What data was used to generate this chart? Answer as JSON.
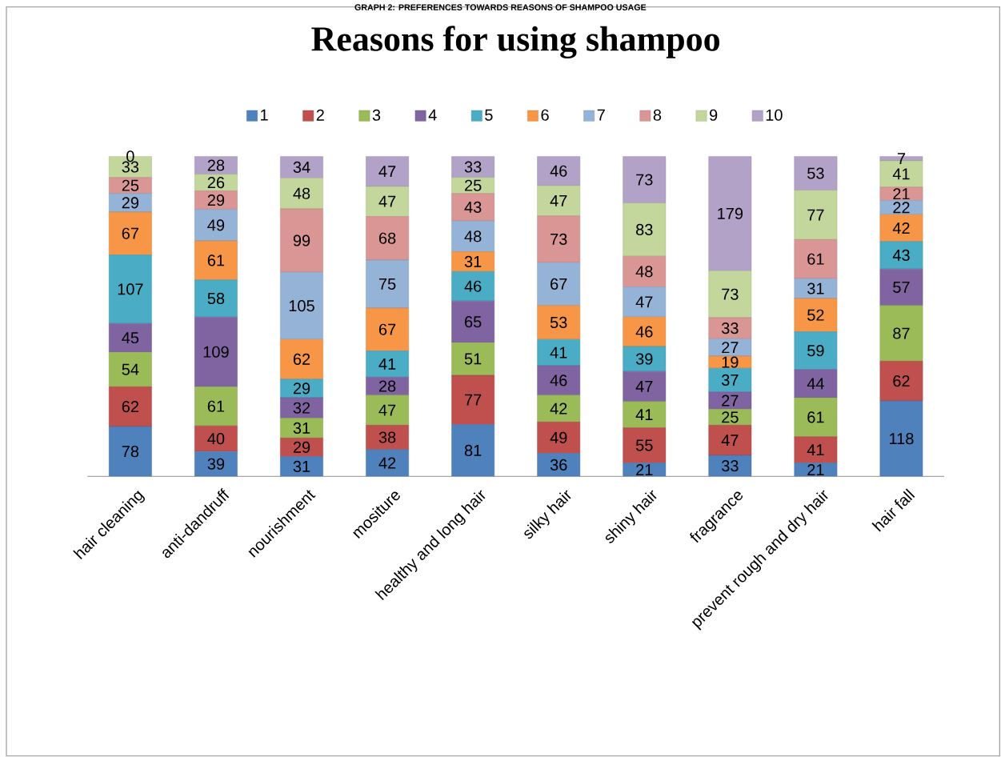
{
  "chart_data": {
    "type": "bar",
    "title": "Reasons for using shampoo",
    "annotations": [
      "GRAPH 2: PREFERENCES TOWARDS REASONS OF SHAMPOO USAGE"
    ],
    "categories": [
      "hair cleaning",
      "anti-dandruff",
      "nourishment",
      "mositure",
      "healthy and long hair",
      "silky hair",
      "shiny hair",
      "fragrance",
      "prevent rough and dry hair",
      "hair fall"
    ],
    "stacked": true,
    "data_labels": true,
    "legend": "top",
    "series": [
      {
        "name": "1",
        "color": "#4f81bd",
        "values": [
          78,
          39,
          31,
          42,
          81,
          36,
          21,
          33,
          21,
          118
        ]
      },
      {
        "name": "2",
        "color": "#c0504d",
        "values": [
          62,
          40,
          29,
          38,
          77,
          49,
          55,
          47,
          41,
          62
        ]
      },
      {
        "name": "3",
        "color": "#9bbb59",
        "values": [
          54,
          61,
          31,
          47,
          51,
          42,
          41,
          25,
          61,
          87
        ]
      },
      {
        "name": "4",
        "color": "#8064a2",
        "values": [
          45,
          109,
          32,
          28,
          65,
          46,
          47,
          27,
          44,
          57
        ]
      },
      {
        "name": "5",
        "color": "#4bacc6",
        "values": [
          107,
          58,
          29,
          41,
          46,
          41,
          39,
          37,
          59,
          43
        ]
      },
      {
        "name": "6",
        "color": "#f79646",
        "values": [
          67,
          61,
          62,
          67,
          31,
          53,
          46,
          19,
          52,
          42
        ]
      },
      {
        "name": "7",
        "color": "#95b3d7",
        "values": [
          29,
          49,
          105,
          75,
          48,
          67,
          47,
          27,
          31,
          22
        ]
      },
      {
        "name": "8",
        "color": "#d99694",
        "values": [
          25,
          29,
          99,
          68,
          43,
          73,
          48,
          33,
          61,
          21
        ]
      },
      {
        "name": "9",
        "color": "#c3d69b",
        "values": [
          33,
          26,
          48,
          47,
          25,
          47,
          83,
          73,
          77,
          41
        ]
      },
      {
        "name": "10",
        "color": "#b2a2c7",
        "values": [
          0,
          28,
          34,
          47,
          33,
          46,
          73,
          179,
          53,
          7
        ]
      }
    ]
  }
}
